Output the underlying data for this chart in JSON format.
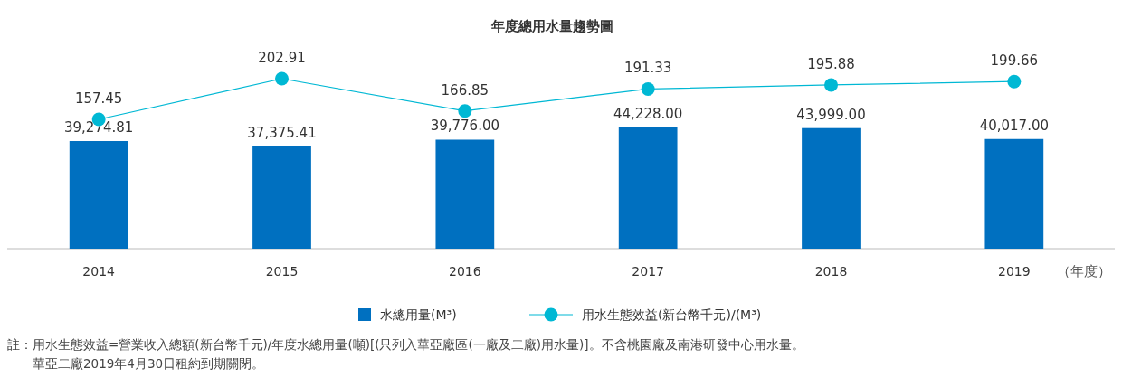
{
  "chart_data": [
    {
      "type": "bar",
      "xlabel": "（年度）",
      "categories": [
        "2014",
        "2015",
        "2016",
        "2017",
        "2018",
        "2019"
      ],
      "series": [
        {
          "name": "水總用量(M³)",
          "color": "#0070c0",
          "values": [
            39274.81,
            37375.41,
            39776.0,
            44228.0,
            43999.0,
            40017.0
          ],
          "value_labels": [
            "39,274.81",
            "37,375.41",
            "39,776.00",
            "44,228.00",
            "43,999.00",
            "40,017.00"
          ]
        }
      ],
      "legend": "bottom",
      "annotations": [
        "註：用水生態效益=營業收入總額(新台幣千元)/年度水總用量(噸)[(只列入華亞廠區(一廠及二廠)用水量)]。不含桃園廠及南港研發中心用水量。",
        "華亞二廠2019年4月30日租約到期關閉。"
      ]
    },
    {
      "type": "line",
      "title": "年度總用水量趨勢圖",
      "categories": [
        "2014",
        "2015",
        "2016",
        "2017",
        "2018",
        "2019"
      ],
      "tick_labels": false,
      "series": [
        {
          "name": "用水生態效益(新台幣千元)/(M³)",
          "color": "#00b8d4",
          "values": [
            157.45,
            202.91,
            166.85,
            191.33,
            195.88,
            199.66
          ],
          "value_labels": [
            "157.45",
            "202.91",
            "166.85",
            "191.33",
            "195.88",
            "199.66"
          ]
        }
      ],
      "marker": "circle",
      "legend": "bottom"
    }
  ]
}
